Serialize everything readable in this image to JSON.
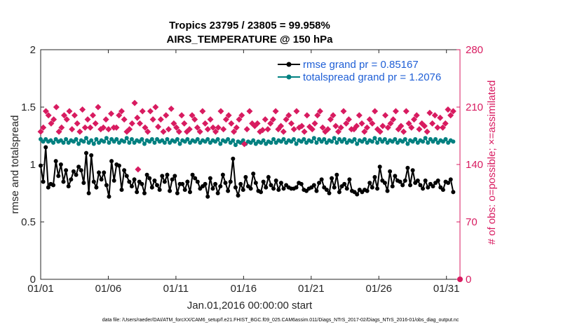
{
  "chart_data": {
    "type": "line",
    "title": "Tropics 23795 / 23805 = 99.958%",
    "subtitle": "AIRS_TEMPERATURE @ 150 hPa",
    "xlabel": "Jan.01,2016 00:00:00 start",
    "ylabel": "rmse and totalspread",
    "ylabel_right": "# of obs: o=possible; ×=assimilated",
    "xlim": [
      1,
      32
    ],
    "ylim": [
      0,
      2
    ],
    "ylim_right": [
      0,
      280
    ],
    "x_tick_values": [
      1,
      6,
      11,
      16,
      21,
      26,
      31
    ],
    "x_tick_labels": [
      "01/01",
      "01/06",
      "01/11",
      "01/16",
      "01/21",
      "01/26",
      "01/31"
    ],
    "y_ticks": [
      "0",
      "0.5",
      "1",
      "1.5",
      "2"
    ],
    "y_ticks_right": [
      "0",
      "70",
      "140",
      "210",
      "280"
    ],
    "footer": "data file: /Users/raeder/DAI/ATM_forcXX/CAM6_setup/f.e21.FHIST_BGC.f09_025.CAM6assim.011/Diags_NTrS_2017-02/Diags_NTrS_2016-01/obs_diag_output.nc",
    "legend_position": "top-right",
    "colors": {
      "rmse": "#000000",
      "spread": "#008080",
      "obs": "#d81b60",
      "right_axis": "#d81b60",
      "legend_text": "#1f5fd6"
    },
    "series": [
      {
        "name": "rmse grand pr = 0.85167",
        "axis": "left",
        "marker": "circle",
        "values": [
          0.99,
          0.85,
          1.15,
          0.8,
          0.83,
          0.82,
          1.03,
          0.9,
          1.0,
          0.85,
          0.95,
          0.81,
          0.87,
          0.94,
          0.91,
          0.98,
          0.95,
          0.84,
          1.1,
          0.75,
          1.08,
          0.85,
          0.8,
          0.93,
          0.87,
          0.93,
          0.82,
          0.72,
          1.03,
          0.86,
          1.0,
          0.99,
          0.78,
          0.95,
          0.9,
          0.85,
          0.81,
          0.87,
          0.76,
          0.85,
          0.83,
          0.75,
          0.91,
          0.88,
          0.8,
          0.86,
          0.82,
          0.78,
          0.9,
          0.85,
          0.91,
          0.77,
          0.87,
          0.9,
          0.75,
          0.83,
          0.83,
          0.78,
          0.85,
          0.76,
          0.91,
          0.88,
          0.85,
          0.79,
          0.81,
          0.83,
          0.72,
          0.88,
          0.79,
          0.83,
          0.75,
          0.81,
          0.91,
          0.84,
          0.77,
          0.85,
          1.05,
          0.8,
          0.73,
          0.83,
          0.78,
          0.89,
          0.81,
          0.79,
          0.92,
          0.84,
          0.77,
          0.76,
          0.85,
          0.8,
          0.89,
          0.82,
          0.79,
          0.86,
          0.78,
          0.84,
          0.79,
          0.82,
          0.8,
          0.79,
          0.79,
          0.8,
          0.84,
          0.83,
          0.78,
          0.77,
          0.79,
          0.8,
          0.82,
          0.77,
          0.84,
          0.87,
          0.8,
          0.78,
          0.75,
          0.88,
          0.8,
          0.91,
          0.76,
          0.81,
          0.83,
          0.79,
          0.87,
          0.77,
          0.76,
          0.74,
          0.78,
          0.76,
          0.78,
          0.77,
          0.84,
          0.8,
          0.89,
          0.79,
          0.98,
          0.86,
          0.84,
          0.77,
          0.94,
          0.81,
          0.9,
          0.86,
          0.85,
          0.82,
          0.86,
          0.97,
          0.82,
          0.95,
          0.84,
          0.86,
          0.82,
          0.79,
          0.86,
          0.8,
          0.83,
          0.81,
          0.84,
          0.86,
          0.8,
          0.78,
          0.85,
          0.84,
          0.87,
          0.76
        ]
      },
      {
        "name": "totalspread grand pr = 1.2076",
        "axis": "left",
        "marker": "circle",
        "values": [
          1.22,
          1.2,
          1.22,
          1.2,
          1.21,
          1.19,
          1.22,
          1.2,
          1.21,
          1.19,
          1.22,
          1.19,
          1.21,
          1.2,
          1.22,
          1.18,
          1.21,
          1.2,
          1.23,
          1.19,
          1.21,
          1.18,
          1.22,
          1.19,
          1.21,
          1.2,
          1.23,
          1.19,
          1.22,
          1.2,
          1.22,
          1.19,
          1.21,
          1.2,
          1.23,
          1.19,
          1.22,
          1.19,
          1.21,
          1.2,
          1.22,
          1.18,
          1.21,
          1.2,
          1.22,
          1.19,
          1.22,
          1.2,
          1.21,
          1.19,
          1.22,
          1.19,
          1.21,
          1.2,
          1.22,
          1.18,
          1.21,
          1.2,
          1.22,
          1.19,
          1.21,
          1.2,
          1.22,
          1.19,
          1.21,
          1.2,
          1.22,
          1.19,
          1.21,
          1.2,
          1.22,
          1.18,
          1.21,
          1.2,
          1.22,
          1.19,
          1.21,
          1.17,
          1.2,
          1.19,
          1.21,
          1.18,
          1.2,
          1.19,
          1.21,
          1.18,
          1.2,
          1.19,
          1.21,
          1.18,
          1.2,
          1.19,
          1.22,
          1.19,
          1.21,
          1.2,
          1.22,
          1.19,
          1.21,
          1.2,
          1.22,
          1.18,
          1.21,
          1.2,
          1.22,
          1.19,
          1.21,
          1.2,
          1.23,
          1.19,
          1.22,
          1.2,
          1.22,
          1.19,
          1.21,
          1.2,
          1.23,
          1.19,
          1.22,
          1.2,
          1.22,
          1.19,
          1.21,
          1.2,
          1.22,
          1.18,
          1.21,
          1.2,
          1.22,
          1.19,
          1.21,
          1.2,
          1.23,
          1.19,
          1.22,
          1.2,
          1.22,
          1.19,
          1.21,
          1.2,
          1.22,
          1.19,
          1.21,
          1.2,
          1.22,
          1.18,
          1.21,
          1.2,
          1.22,
          1.19,
          1.21,
          1.2,
          1.23,
          1.19,
          1.22,
          1.2,
          1.22,
          1.19,
          1.21,
          1.2,
          1.22,
          1.19,
          1.21,
          1.2
        ]
      },
      {
        "name": "# of obs (assimilated)",
        "axis": "right",
        "marker": "diamond",
        "values": [
          180,
          185,
          205,
          200,
          190,
          195,
          210,
          180,
          185,
          200,
          195,
          205,
          183,
          200,
          190,
          180,
          207,
          185,
          195,
          185,
          200,
          190,
          210,
          183,
          185,
          195,
          183,
          202,
          185,
          185,
          200,
          205,
          195,
          180,
          183,
          190,
          215,
          197,
          190,
          205,
          185,
          180,
          205,
          195,
          210,
          186,
          195,
          180,
          200,
          183,
          208,
          190,
          185,
          180,
          200,
          190,
          180,
          183,
          200,
          195,
          185,
          180,
          205,
          190,
          183,
          195,
          185,
          180,
          185,
          205,
          183,
          195,
          200,
          190,
          180,
          185,
          195,
          200,
          165,
          183,
          205,
          190,
          187,
          190,
          180,
          182,
          195,
          183,
          190,
          195,
          205,
          183,
          187,
          180,
          195,
          200,
          190,
          183,
          205,
          185,
          187,
          180,
          200,
          186,
          183,
          190,
          200,
          205,
          185,
          180,
          183,
          195,
          200,
          187,
          180,
          185,
          205,
          190,
          195,
          183,
          183,
          187,
          200,
          190,
          180,
          185,
          195,
          190,
          205,
          183,
          180,
          187,
          200,
          185,
          190,
          195,
          205,
          183,
          187,
          180,
          205,
          190,
          185,
          195,
          200,
          183,
          190,
          187,
          180,
          203,
          190,
          200,
          185,
          197,
          185,
          190,
          207,
          200,
          205
        ]
      },
      {
        "name": "# of obs (possible)",
        "axis": "right",
        "marker": "circle",
        "values": [
          0
        ]
      }
    ],
    "outliers": [
      {
        "x": 8.2,
        "y_right": 134
      }
    ]
  }
}
